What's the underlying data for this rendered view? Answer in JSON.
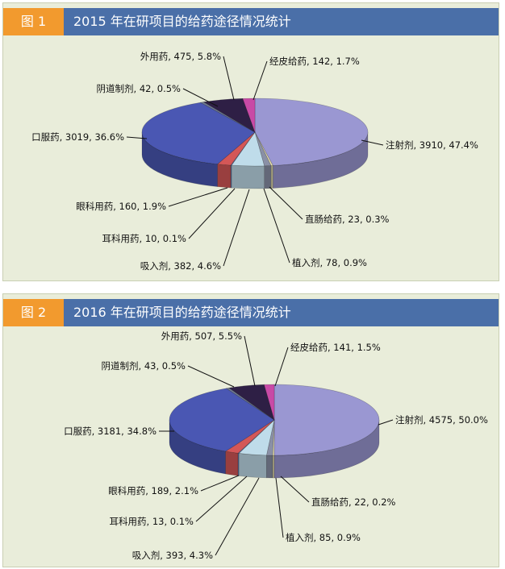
{
  "figures": [
    {
      "tag": "图 1",
      "title": "2015 年在研项目的给药途径情况统计"
    },
    {
      "tag": "图 2",
      "title": "2016 年在研项目的给药途径情况统计"
    }
  ],
  "colors": {
    "注射剂": "#9a97d2",
    "直肠给药": "#e6dfb0",
    "植入剂": "#8a90a6",
    "吸入剂": "#bfdcea",
    "耳科用药": "#5f7ab8",
    "眼科用药": "#d45757",
    "口服药": "#4a57b3",
    "阴道制剂": "#6f7a92",
    "外用药": "#2e1f45",
    "经皮给药": "#c84aa6"
  },
  "chart_data": [
    {
      "type": "pie",
      "title": "2015 年在研项目的给药途径情况统计",
      "slices": [
        {
          "label": "注射剂",
          "value": 3910,
          "percent": "47.4%",
          "text": "注射剂, 3910, 47.4%"
        },
        {
          "label": "直肠给药",
          "value": 23,
          "percent": "0.3%",
          "text": "直肠给药, 23, 0.3%"
        },
        {
          "label": "植入剂",
          "value": 78,
          "percent": "0.9%",
          "text": "植入剂, 78, 0.9%"
        },
        {
          "label": "吸入剂",
          "value": 382,
          "percent": "4.6%",
          "text": "吸入剂, 382, 4.6%"
        },
        {
          "label": "耳科用药",
          "value": 10,
          "percent": "0.1%",
          "text": "耳科用药, 10, 0.1%"
        },
        {
          "label": "眼科用药",
          "value": 160,
          "percent": "1.9%",
          "text": "眼科用药, 160, 1.9%"
        },
        {
          "label": "口服药",
          "value": 3019,
          "percent": "36.6%",
          "text": "口服药, 3019, 36.6%"
        },
        {
          "label": "阴道制剂",
          "value": 42,
          "percent": "0.5%",
          "text": "阴道制剂, 42, 0.5%"
        },
        {
          "label": "外用药",
          "value": 475,
          "percent": "5.8%",
          "text": "外用药, 475, 5.8%"
        },
        {
          "label": "经皮给药",
          "value": 142,
          "percent": "1.7%",
          "text": "经皮给药, 142, 1.7%"
        }
      ]
    },
    {
      "type": "pie",
      "title": "2016 年在研项目的给药途径情况统计",
      "slices": [
        {
          "label": "注射剂",
          "value": 4575,
          "percent": "50.0%",
          "text": "注射剂, 4575, 50.0%"
        },
        {
          "label": "直肠给药",
          "value": 22,
          "percent": "0.2%",
          "text": "直肠给药, 22, 0.2%"
        },
        {
          "label": "植入剂",
          "value": 85,
          "percent": "0.9%",
          "text": "植入剂, 85, 0.9%"
        },
        {
          "label": "吸入剂",
          "value": 393,
          "percent": "4.3%",
          "text": "吸入剂, 393, 4.3%"
        },
        {
          "label": "耳科用药",
          "value": 13,
          "percent": "0.1%",
          "text": "耳科用药, 13, 0.1%"
        },
        {
          "label": "眼科用药",
          "value": 189,
          "percent": "2.1%",
          "text": "眼科用药, 189, 2.1%"
        },
        {
          "label": "口服药",
          "value": 3181,
          "percent": "34.8%",
          "text": "口服药, 3181, 34.8%"
        },
        {
          "label": "阴道制剂",
          "value": 43,
          "percent": "0.5%",
          "text": "阴道制剂, 43, 0.5%"
        },
        {
          "label": "外用药",
          "value": 507,
          "percent": "5.5%",
          "text": "外用药, 507, 5.5%"
        },
        {
          "label": "经皮给药",
          "value": 141,
          "percent": "1.5%",
          "text": "经皮给药, 141, 1.5%"
        }
      ]
    }
  ]
}
